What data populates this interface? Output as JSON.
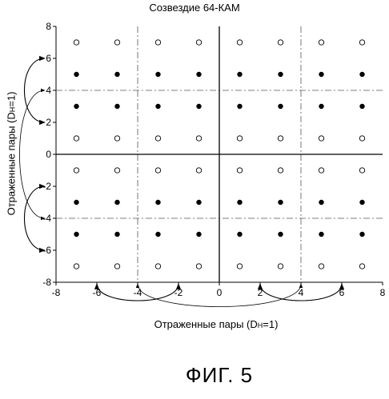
{
  "title": "Созвездие 64-КАМ",
  "xlabel": "Отраженные пары (D",
  "xlabel_sub": "H",
  "xlabel_tail": "=1)",
  "ylabel": "Отраженные пары (D",
  "ylabel_sub": "H",
  "ylabel_tail": "=1)",
  "caption": "ФИГ. 5",
  "x_ticks": [
    "-8",
    "-6",
    "-4",
    "-2",
    "0",
    "2",
    "4",
    "6",
    "8"
  ],
  "y_ticks": [
    "8",
    "6",
    "4",
    "2",
    "0",
    "-2",
    "-4",
    "-6",
    "-8"
  ],
  "chart_data": {
    "type": "scatter",
    "xlim": [
      -8,
      8
    ],
    "ylim": [
      -8,
      8
    ],
    "grid": false,
    "divider_lines": [
      -4,
      4
    ],
    "filled_points": [
      [
        -7,
        5
      ],
      [
        -5,
        5
      ],
      [
        -3,
        5
      ],
      [
        -1,
        5
      ],
      [
        1,
        5
      ],
      [
        3,
        5
      ],
      [
        5,
        5
      ],
      [
        7,
        5
      ],
      [
        -7,
        3
      ],
      [
        -5,
        3
      ],
      [
        -3,
        3
      ],
      [
        -1,
        3
      ],
      [
        1,
        3
      ],
      [
        3,
        3
      ],
      [
        5,
        3
      ],
      [
        7,
        3
      ],
      [
        -7,
        -3
      ],
      [
        -5,
        -3
      ],
      [
        -3,
        -3
      ],
      [
        -1,
        -3
      ],
      [
        1,
        -3
      ],
      [
        3,
        -3
      ],
      [
        5,
        -3
      ],
      [
        7,
        -3
      ],
      [
        -7,
        -5
      ],
      [
        -5,
        -5
      ],
      [
        -3,
        -5
      ],
      [
        -1,
        -5
      ],
      [
        1,
        -5
      ],
      [
        3,
        -5
      ],
      [
        5,
        -5
      ],
      [
        7,
        -5
      ]
    ],
    "open_points": [
      [
        -7,
        7
      ],
      [
        -5,
        7
      ],
      [
        -3,
        7
      ],
      [
        -1,
        7
      ],
      [
        1,
        7
      ],
      [
        3,
        7
      ],
      [
        5,
        7
      ],
      [
        7,
        7
      ],
      [
        -7,
        1
      ],
      [
        -5,
        1
      ],
      [
        -3,
        1
      ],
      [
        -1,
        1
      ],
      [
        1,
        1
      ],
      [
        3,
        1
      ],
      [
        5,
        1
      ],
      [
        7,
        1
      ],
      [
        -7,
        -1
      ],
      [
        -5,
        -1
      ],
      [
        -3,
        -1
      ],
      [
        -1,
        -1
      ],
      [
        1,
        -1
      ],
      [
        3,
        -1
      ],
      [
        5,
        -1
      ],
      [
        7,
        -1
      ],
      [
        -7,
        -7
      ],
      [
        -5,
        -7
      ],
      [
        -3,
        -7
      ],
      [
        -1,
        -7
      ],
      [
        1,
        -7
      ],
      [
        3,
        -7
      ],
      [
        5,
        -7
      ],
      [
        7,
        -7
      ]
    ],
    "x_pair_arrows": [
      [
        -6,
        -2
      ],
      [
        2,
        6
      ],
      [
        -4,
        4
      ]
    ],
    "y_pair_arrows": [
      [
        6,
        2
      ],
      [
        -2,
        -6
      ],
      [
        4,
        -4
      ]
    ]
  }
}
